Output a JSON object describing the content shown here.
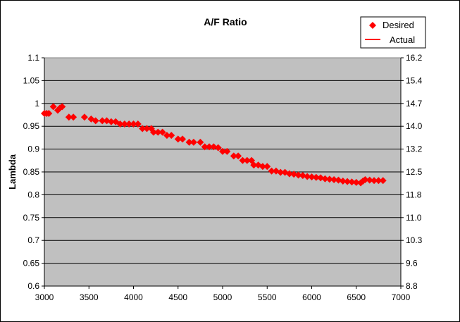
{
  "chart_data": {
    "type": "scatter",
    "title": "A/F Ratio",
    "xlabel": "",
    "ylabel": "Lambda",
    "xlim": [
      3000,
      7000
    ],
    "ylim": [
      0.6,
      1.1
    ],
    "x_ticks": [
      3000,
      3500,
      4000,
      4500,
      5000,
      5500,
      6000,
      6500,
      7000
    ],
    "y_ticks": [
      "0.6",
      "0.65",
      "0.7",
      "0.75",
      "0.8",
      "0.85",
      "0.9",
      "0.95",
      "1",
      "1.05",
      "1.1"
    ],
    "y2_ticks": [
      "8.8",
      "9.6",
      "10.3",
      "11.0",
      "11.8",
      "12.5",
      "13.2",
      "14.0",
      "14.7",
      "15.4",
      "16.2"
    ],
    "y2lim": [
      8.8,
      16.2
    ],
    "grid": "horizontal",
    "legend_position": "top-right",
    "colors": {
      "plot_bg": "#c0c0c0",
      "marker": "#ff0000",
      "line": "#ff0000"
    },
    "series": [
      {
        "name": "Desired",
        "kind": "markers",
        "x": [
          3000,
          3025,
          3050,
          3100,
          3150,
          3175,
          3200,
          3275,
          3325,
          3450,
          3525,
          3575,
          3650,
          3700,
          3750,
          3800,
          3850,
          3900,
          3950,
          4000,
          4050,
          4100,
          4150,
          4200,
          4225,
          4275,
          4325,
          4375,
          4425,
          4500,
          4550,
          4625,
          4675,
          4750,
          4800,
          4850,
          4900,
          4950,
          5000,
          5050,
          5125,
          5175,
          5225,
          5275,
          5325,
          5350,
          5400,
          5450,
          5500,
          5550,
          5600,
          5650,
          5700,
          5750,
          5800,
          5850,
          5900,
          5950,
          6000,
          6050,
          6100,
          6150,
          6200,
          6250,
          6300,
          6350,
          6400,
          6450,
          6500,
          6550,
          6575,
          6600,
          6650,
          6700,
          6750,
          6800
        ],
        "y": [
          0.978,
          0.978,
          0.978,
          0.993,
          0.985,
          0.99,
          0.993,
          0.97,
          0.97,
          0.97,
          0.966,
          0.962,
          0.962,
          0.962,
          0.96,
          0.96,
          0.955,
          0.955,
          0.955,
          0.955,
          0.955,
          0.945,
          0.945,
          0.945,
          0.937,
          0.937,
          0.937,
          0.93,
          0.93,
          0.922,
          0.922,
          0.915,
          0.915,
          0.915,
          0.905,
          0.905,
          0.905,
          0.903,
          0.895,
          0.895,
          0.885,
          0.885,
          0.875,
          0.875,
          0.875,
          0.865,
          0.865,
          0.862,
          0.862,
          0.852,
          0.852,
          0.849,
          0.849,
          0.846,
          0.845,
          0.843,
          0.842,
          0.84,
          0.839,
          0.838,
          0.837,
          0.835,
          0.834,
          0.833,
          0.832,
          0.83,
          0.829,
          0.828,
          0.827,
          0.826,
          0.83,
          0.833,
          0.832,
          0.831,
          0.831,
          0.831
        ]
      },
      {
        "name": "Actual",
        "kind": "line",
        "x": [],
        "y": []
      }
    ]
  }
}
